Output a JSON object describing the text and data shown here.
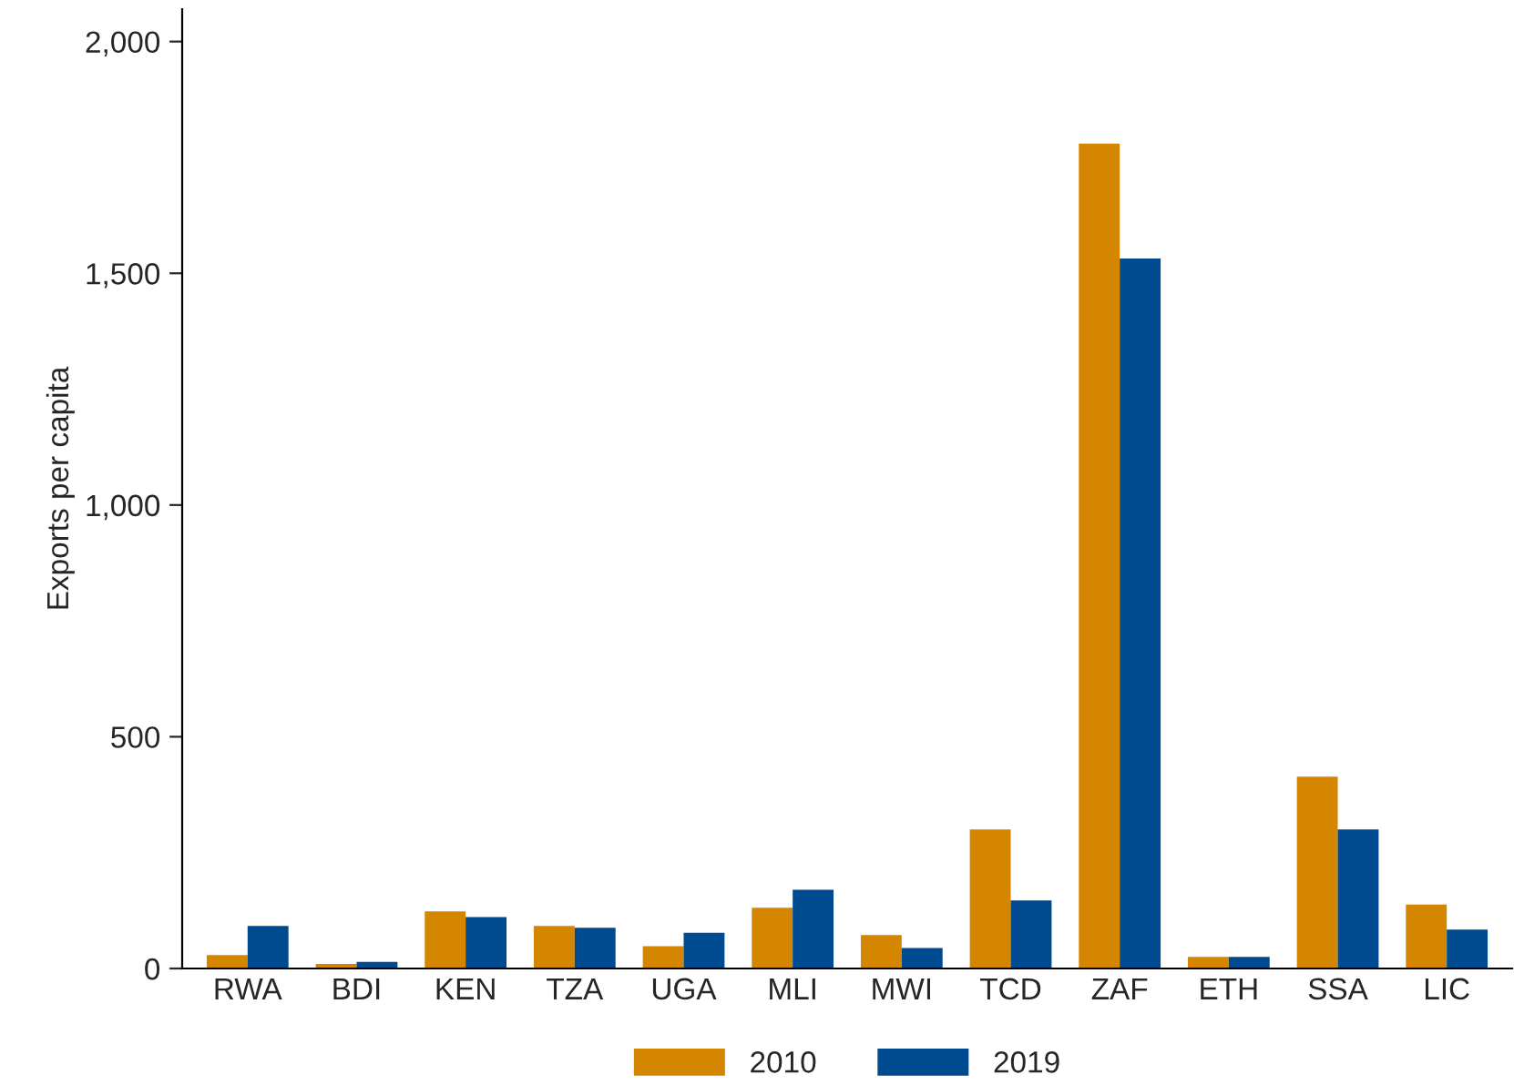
{
  "chart_data": {
    "type": "bar",
    "ylabel": "Exports per capita",
    "categories": [
      "RWA",
      "BDI",
      "KEN",
      "TZA",
      "UGA",
      "MLI",
      "MWI",
      "TCD",
      "ZAF",
      "ETH",
      "SSA",
      "LIC"
    ],
    "series": [
      {
        "name": "2010",
        "color": "#d48600",
        "values": [
          29,
          10,
          123,
          92,
          48,
          131,
          72,
          300,
          1780,
          25,
          414,
          138
        ]
      },
      {
        "name": "2019",
        "color": "#004a8f",
        "values": [
          92,
          14,
          111,
          88,
          77,
          170,
          44,
          147,
          1532,
          25,
          300,
          84
        ]
      }
    ],
    "ylim": [
      0,
      2070
    ],
    "yticks": [
      0,
      {
        "value": 500,
        "label": "500"
      },
      {
        "value": 1000,
        "label": "1,000"
      },
      {
        "value": 1500,
        "label": "1,500"
      },
      {
        "value": 2000,
        "label": "2,000"
      }
    ],
    "grid": false,
    "legend": "bottom"
  }
}
